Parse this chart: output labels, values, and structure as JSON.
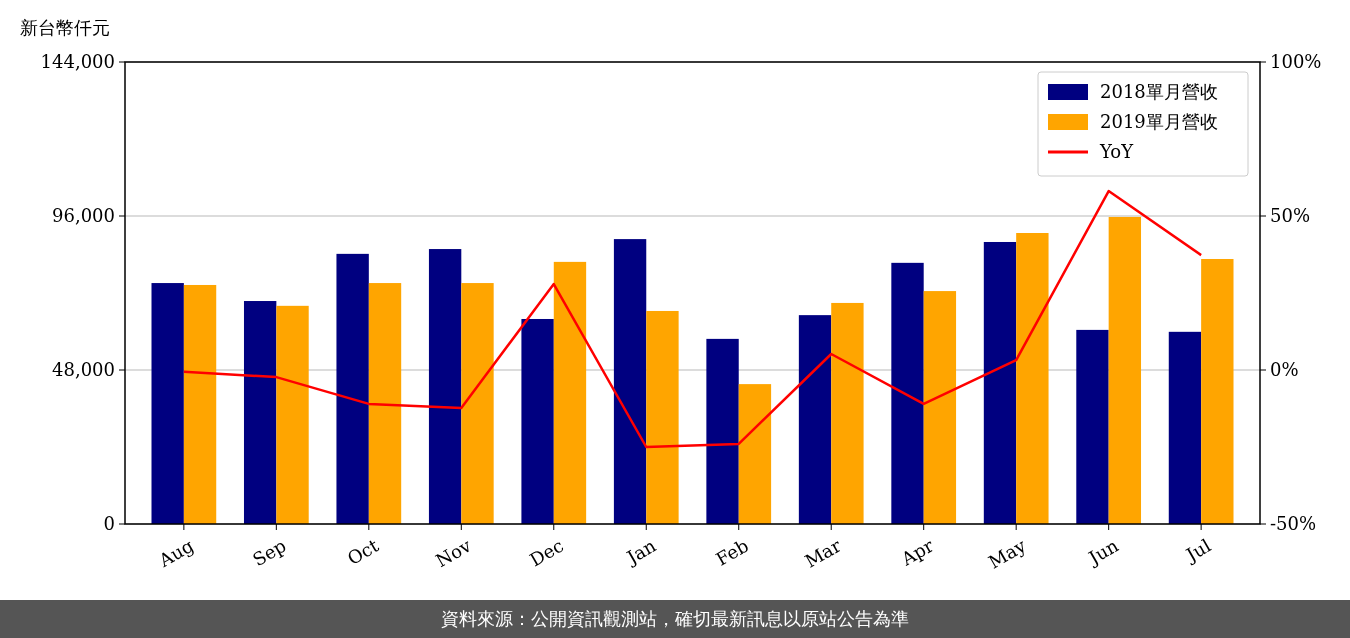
{
  "chart_data": {
    "type": "bar",
    "ylabel": "新台幣仟元",
    "categories": [
      "Aug",
      "Sep",
      "Oct",
      "Nov",
      "Dec",
      "Jan",
      "Feb",
      "Mar",
      "Apr",
      "May",
      "Jun",
      "Jul"
    ],
    "series": [
      {
        "name": "2018單月營收",
        "color": "#000080",
        "values": [
          75100,
          69500,
          84200,
          85700,
          63900,
          88800,
          57700,
          65100,
          81400,
          87900,
          60500,
          59900
        ]
      },
      {
        "name": "2019單月營收",
        "color": "#ffa500",
        "values": [
          74500,
          68000,
          75100,
          75100,
          81700,
          66400,
          43600,
          68900,
          72600,
          90700,
          95700,
          82600
        ]
      },
      {
        "name": "YoY",
        "type": "line",
        "axis": "y2",
        "color": "#ff0000",
        "values": [
          -0.6,
          -2.3,
          -11,
          -12.3,
          27.9,
          -25,
          -24,
          5.2,
          -11,
          3.2,
          58.1,
          37.3
        ]
      }
    ],
    "ylim": [
      0,
      144000
    ],
    "yticks": [
      {
        "value": 0,
        "label": "0"
      },
      {
        "value": 48000,
        "label": "48,000"
      },
      {
        "value": 96000,
        "label": "96,000"
      },
      {
        "value": 144000,
        "label": "144,000"
      }
    ],
    "y2lim": [
      -50,
      100
    ],
    "y2ticks": [
      {
        "value": -50,
        "label": "-50%"
      },
      {
        "value": 0,
        "label": "0%"
      },
      {
        "value": 50,
        "label": "50%"
      },
      {
        "value": 100,
        "label": "100%"
      }
    ],
    "grid": "y",
    "legend": "top right",
    "marker": "none",
    "line_style": "solid",
    "annotations": [
      "資料來源：公開資訊觀測站，確切最新訊息以原站公告為準"
    ]
  }
}
